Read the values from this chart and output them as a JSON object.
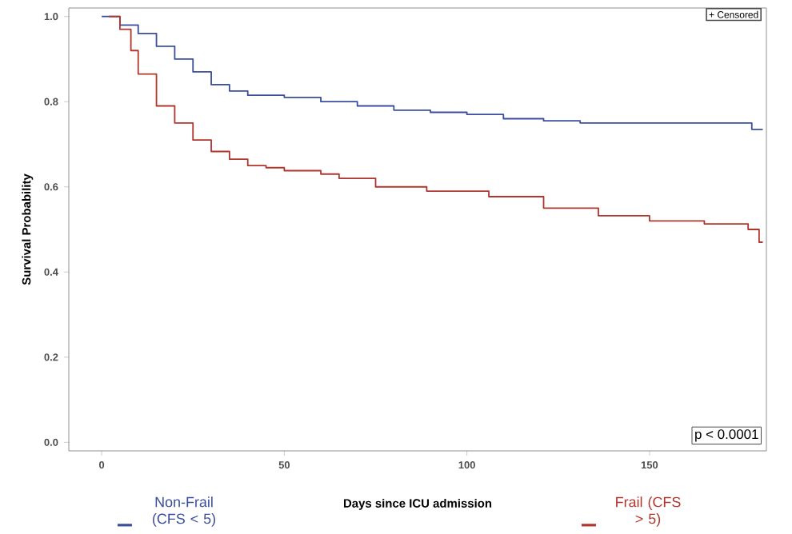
{
  "chart_data": {
    "type": "step",
    "xlabel": "Days since ICU admission",
    "ylabel": "Survival Probability",
    "xlim": [
      -9,
      182
    ],
    "ylim": [
      -0.02,
      1.02
    ],
    "xticks": [
      0,
      50,
      100,
      150
    ],
    "yticks": [
      {
        "value": 0,
        "label": "0.0"
      },
      {
        "value": 0.2,
        "label": "0.2"
      },
      {
        "value": 0.4,
        "label": "0.4"
      },
      {
        "value": 0.6,
        "label": "0.6"
      },
      {
        "value": 0.8,
        "label": "0.8"
      },
      {
        "value": 1,
        "label": "1.0"
      }
    ],
    "legend": "bottom",
    "grid": false,
    "series": [
      {
        "name": "Non-Frail (CFS < 5)",
        "color": "#3b4e9e",
        "x": [
          0,
          2,
          5,
          10,
          15,
          20,
          25,
          30,
          35,
          40,
          50,
          60,
          70,
          80,
          90,
          100,
          110,
          121,
          131,
          178,
          181
        ],
        "values": [
          1.0,
          1.0,
          0.98,
          0.96,
          0.93,
          0.9,
          0.87,
          0.84,
          0.825,
          0.815,
          0.81,
          0.8,
          0.79,
          0.78,
          0.775,
          0.77,
          0.76,
          0.755,
          0.75,
          0.735,
          0.735
        ]
      },
      {
        "name": "Frail (CFS > 5)",
        "color": "#b2352d",
        "x": [
          2,
          5,
          8,
          10,
          15,
          20,
          25,
          30,
          35,
          40,
          45,
          50,
          60,
          65,
          75,
          89,
          106,
          121,
          136,
          150,
          165,
          177,
          180,
          181
        ],
        "values": [
          1.0,
          0.97,
          0.92,
          0.865,
          0.79,
          0.75,
          0.71,
          0.683,
          0.665,
          0.65,
          0.645,
          0.638,
          0.63,
          0.62,
          0.6,
          0.59,
          0.577,
          0.55,
          0.532,
          0.52,
          0.513,
          0.5,
          0.47,
          0.47
        ]
      }
    ],
    "annotations": [
      "+ Censored",
      "p < 0.0001"
    ]
  }
}
